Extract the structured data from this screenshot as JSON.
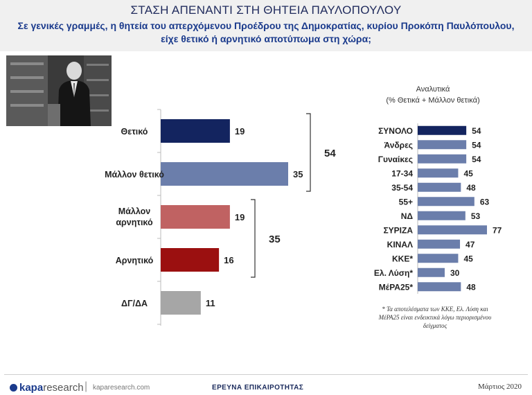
{
  "header": {
    "title": "ΣΤΑΣΗ ΑΠΕΝΑΝΤΙ ΣΤΗ ΘΗΤΕΙΑ ΠΑΥΛΟΠΟΥΛΟΥ",
    "subtitle_line1": "Σε γενικές γραμμές, η θητεία του απερχόμενου Προέδρου της Δημοκρατίας, κυρίου Προκόπη Παυλόπουλου,",
    "subtitle_line2": "είχε θετικό ή αρνητικό αποτύπωμα στη χώρα;"
  },
  "chart_data": [
    {
      "type": "bar",
      "orientation": "horizontal",
      "categories": [
        "Θετικό",
        "Μάλλον θετικό",
        "Μάλλον αρνητικό",
        "Αρνητικό",
        "ΔΓ/ΔΑ"
      ],
      "values": [
        19,
        35,
        19,
        16,
        11
      ],
      "colors": [
        "#13245f",
        "#6b7eab",
        "#c06262",
        "#9b1010",
        "#a6a6a6"
      ],
      "groups": [
        {
          "members": [
            "Θετικό",
            "Μάλλον θετικό"
          ],
          "total": 54
        },
        {
          "members": [
            "Μάλλον αρνητικό",
            "Αρνητικό"
          ],
          "total": 35
        }
      ]
    },
    {
      "type": "bar",
      "orientation": "horizontal",
      "title": "Αναλυτικά",
      "subtitle": "(% Θετικά + Μάλλον θετικά)",
      "categories": [
        "ΣΥΝΟΛΟ",
        "Άνδρες",
        "Γυναίκες",
        "17-34",
        "35-54",
        "55+",
        "ΝΔ",
        "ΣΥΡΙΖΑ",
        "ΚΙΝΑΛ",
        "ΚΚΕ*",
        "Ελ. Λύση*",
        "ΜέΡΑ25*"
      ],
      "values": [
        54,
        54,
        54,
        45,
        48,
        63,
        53,
        77,
        47,
        45,
        30,
        48
      ],
      "colors": [
        "#13245f",
        "#6b7eab"
      ]
    }
  ],
  "note": {
    "line1": "* Τα αποτελέσματα των ΚΚΕ, Ελ. Λύση και",
    "line2": "ΜέΡΑ25 είναι ενδεικτικά λόγω περιορισμένου",
    "line3": "δείγματος"
  },
  "footer": {
    "logo_bold": "kapa",
    "logo_light": "research",
    "separator": "|",
    "site": "kaparesearch.com",
    "survey": "ΕΡΕΥΝΑ ΕΠΙΚΑΙΡΟΤΗΤΑΣ",
    "date": "Μάρτιος 2020"
  }
}
